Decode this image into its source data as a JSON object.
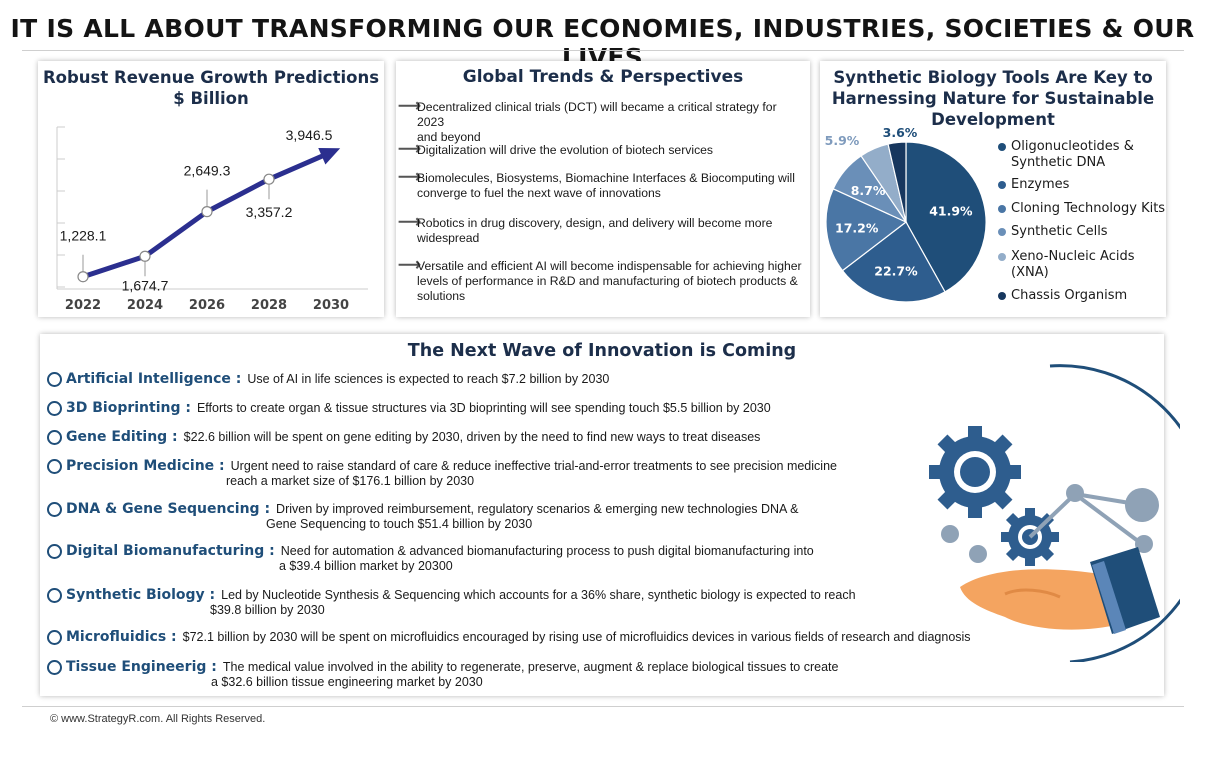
{
  "header": {
    "title": "IT IS ALL ABOUT TRANSFORMING OUR ECONOMIES, INDUSTRIES, SOCIETIES & OUR LIVES"
  },
  "revenue": {
    "title_line1": "Robust Revenue Growth Predictions",
    "title_line2": "$ Billion"
  },
  "trends": {
    "title": "Global Trends & Perspectives",
    "items": [
      {
        "line1": "Decentralized clinical trials (DCT) will became a critical strategy for 2023",
        "line2": "and beyond"
      },
      {
        "line1": "Digitalization will drive the evolution of biotech services",
        "line2": ""
      },
      {
        "line1": "Biomolecules, Biosystems, Biomachine Interfaces & Biocomputing will",
        "line2": "converge to fuel the next wave of innovations"
      },
      {
        "line1": "Robotics in drug discovery, design, and delivery will become more",
        "line2": "widespread"
      },
      {
        "line1": "Versatile and efficient AI will become indispensable for achieving higher",
        "line2": "levels of performance in R&D and manufacturing of biotech products &",
        "line3": "solutions"
      }
    ]
  },
  "synbio": {
    "title_line1": "Synthetic Biology Tools Are Key to",
    "title_line2": "Harnessing Nature for Sustainable",
    "title_line3": "Development"
  },
  "wave": {
    "title": "The Next Wave of Innovation is Coming",
    "items": [
      {
        "label": "Artificial Intelligence :",
        "desc": "Use of AI in life sciences is expected to reach $7.2 billion by 2030",
        "desc2": ""
      },
      {
        "label": "3D Bioprinting :",
        "desc": "Efforts to create organ & tissue structures via 3D bioprinting will see spending touch $5.5 billion by 2030",
        "desc2": ""
      },
      {
        "label": "Gene Editing :",
        "desc": "$22.6 billion will be spent on gene editing by 2030, driven by the need to find new ways to treat diseases",
        "desc2": ""
      },
      {
        "label": "Precision Medicine :",
        "desc": "Urgent need to raise standard of care & reduce ineffective trial-and-error treatments to see precision medicine",
        "desc2": "reach a market size of $176.1 billion by 2030"
      },
      {
        "label": "DNA & Gene Sequencing :",
        "desc": "Driven by improved reimbursement, regulatory scenarios & emerging new technologies DNA &",
        "desc2": "Gene Sequencing to touch $51.4 billion by 2030"
      },
      {
        "label": "Digital Biomanufacturing :",
        "desc": "Need for automation & advanced biomanufacturing process to push digital biomanufacturing into",
        "desc2": "a $39.4 billion market by 20300"
      },
      {
        "label": "Synthetic Biology :",
        "desc": "Led by Nucleotide Synthesis & Sequencing which accounts for a 36% share, synthetic biology is expected to reach",
        "desc2": "$39.8 billion by 2030"
      },
      {
        "label": "Microfluidics :",
        "desc": "$72.1 billion by 2030 will be spent on microfluidics encouraged by rising use of microfluidics devices in various fields of research and diagnosis",
        "desc2": ""
      },
      {
        "label": "Tissue Engineerig :",
        "desc": "The medical value involved in the ability to regenerate, preserve, augment & replace biological tissues to create",
        "desc2": "a $32.6 billion tissue engineering market by 2030"
      }
    ]
  },
  "footer": {
    "copyright": "© www.StrategyR.com. All Rights Reserved."
  },
  "chart_data": [
    {
      "type": "line",
      "title": "Robust Revenue Growth Predictions $ Billion",
      "categories": [
        "2022",
        "2024",
        "2026",
        "2028",
        "2030"
      ],
      "values": [
        1228.1,
        1674.7,
        2649.3,
        3357.2,
        3946.5
      ],
      "data_labels": [
        "1,228.1",
        "1,674.7",
        "2,649.3",
        "3,357.2",
        "3,946.5"
      ],
      "line_color": "#2b2f8f"
    },
    {
      "type": "pie",
      "title": "Synthetic Biology Tools Are Key to Harnessing Nature for Sustainable Development",
      "slices": [
        {
          "label": "Oligonucleotides & Synthetic DNA",
          "value": 41.9,
          "display": "41.9%",
          "color": "#1f4e79"
        },
        {
          "label": "Enzymes",
          "value": 22.7,
          "display": "22.7%",
          "color": "#2e5d8e"
        },
        {
          "label": "Cloning Technology Kits",
          "value": 17.2,
          "display": "17.2%",
          "color": "#4a76a5"
        },
        {
          "label": "Synthetic Cells",
          "value": 8.7,
          "display": "8.7%",
          "color": "#6a8fb8"
        },
        {
          "label": "Xeno-Nucleic Acids (XNA)",
          "value": 5.9,
          "display": "5.9%",
          "color": "#93adc9"
        },
        {
          "label": "Chassis Organism",
          "value": 3.6,
          "display": "3.6%",
          "color": "#17375e"
        }
      ]
    }
  ]
}
